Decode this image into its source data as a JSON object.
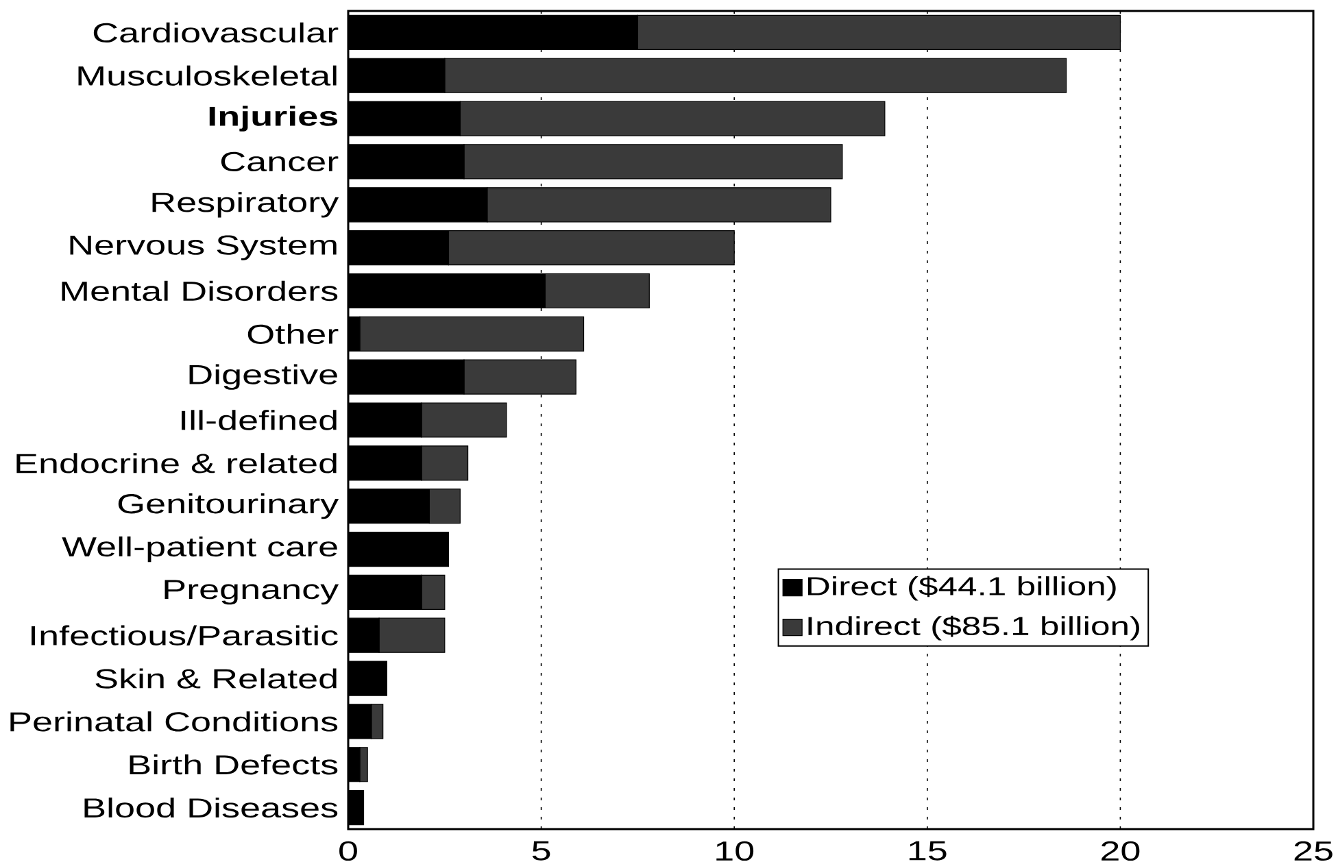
{
  "chart_data": {
    "type": "bar",
    "orientation": "horizontal",
    "stacked": true,
    "categories": [
      "Cardiovascular",
      "Musculoskeletal",
      "**Injuries**",
      "Cancer",
      "Respiratory",
      "Nervous System",
      "Mental Disorders",
      "Other",
      "Digestive",
      "Ill-defined",
      "Endocrine & related",
      "Genitourinary",
      "Well-patient care",
      "Pregnancy",
      "Infectious/Parasitic",
      "Skin & Related",
      "Perinatal Conditions",
      "Birth Defects",
      "Blood Diseases"
    ],
    "series": [
      {
        "name": "Direct ($44.1 billion)",
        "color": "#000000",
        "values": [
          7.5,
          2.5,
          2.9,
          3.0,
          3.6,
          2.6,
          5.1,
          0.3,
          3.0,
          1.9,
          1.9,
          2.1,
          2.6,
          1.9,
          0.8,
          1.0,
          0.6,
          0.3,
          0.4
        ]
      },
      {
        "name": "Indirect ($85.1 billion)",
        "color": "#3a3a3a",
        "values": [
          12.5,
          16.1,
          11.0,
          9.8,
          8.9,
          7.4,
          2.7,
          5.8,
          2.9,
          2.2,
          1.2,
          0.8,
          0,
          0.6,
          1.7,
          0,
          0.3,
          0.2,
          0
        ]
      }
    ],
    "xlim": [
      0,
      25
    ],
    "xticks": [
      0,
      5,
      10,
      15,
      20,
      25
    ],
    "grid": "x",
    "legend": "right"
  }
}
